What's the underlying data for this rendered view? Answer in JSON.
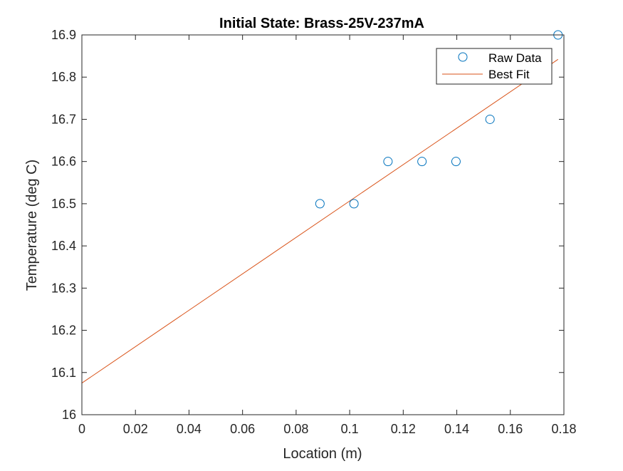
{
  "chart_data": {
    "type": "scatter",
    "title": "Initial State: Brass-25V-237mA",
    "xlabel": "Location (m)",
    "ylabel": "Temperature (deg C)",
    "xlim": [
      0,
      0.18
    ],
    "ylim": [
      16,
      16.9
    ],
    "xticks": [
      0,
      0.02,
      0.04,
      0.06,
      0.08,
      0.1,
      0.12,
      0.14,
      0.16,
      0.18
    ],
    "xtick_labels": [
      "0",
      "0.02",
      "0.04",
      "0.06",
      "0.08",
      "0.1",
      "0.12",
      "0.14",
      "0.16",
      "0.18"
    ],
    "yticks": [
      16,
      16.1,
      16.2,
      16.3,
      16.4,
      16.5,
      16.6,
      16.7,
      16.8,
      16.9
    ],
    "ytick_labels": [
      "16",
      "16.1",
      "16.2",
      "16.3",
      "16.4",
      "16.5",
      "16.6",
      "16.7",
      "16.8",
      "16.9"
    ],
    "grid": false,
    "legend_position": "top-right",
    "series": [
      {
        "name": "Raw Data",
        "kind": "markers",
        "marker": "circle",
        "color": "#0072BD",
        "x": [
          0.0889,
          0.1016,
          0.1143,
          0.127,
          0.1397,
          0.1524,
          0.1778
        ],
        "y": [
          16.5,
          16.5,
          16.6,
          16.6,
          16.6,
          16.7,
          16.9
        ]
      },
      {
        "name": "Best Fit",
        "kind": "line",
        "color": "#D95319",
        "x": [
          0,
          0.1778
        ],
        "y": [
          16.075,
          16.842
        ]
      }
    ]
  }
}
